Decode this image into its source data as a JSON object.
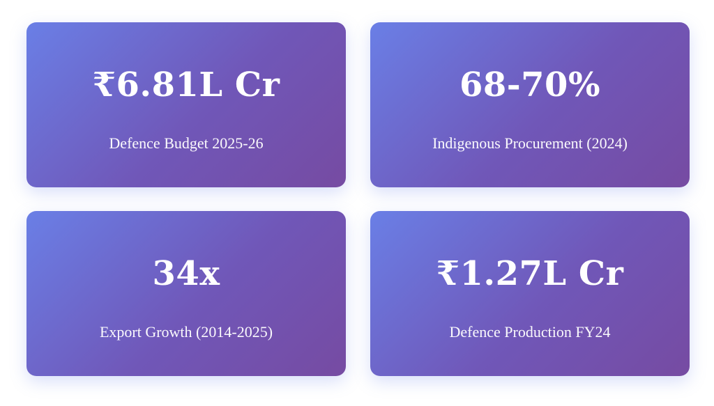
{
  "stats": [
    {
      "value": "₹6.81L Cr",
      "label": "Defence Budget 2025-26"
    },
    {
      "value": "68-70%",
      "label": "Indigenous Procurement (2024)"
    },
    {
      "value": "34x",
      "label": "Export Growth (2014-2025)"
    },
    {
      "value": "₹1.27L Cr",
      "label": "Defence Production FY24"
    }
  ],
  "colors": {
    "card_gradient_start": "#6a7fe6",
    "card_gradient_end": "#764ba2",
    "text": "#ffffff",
    "background": "#ffffff"
  }
}
